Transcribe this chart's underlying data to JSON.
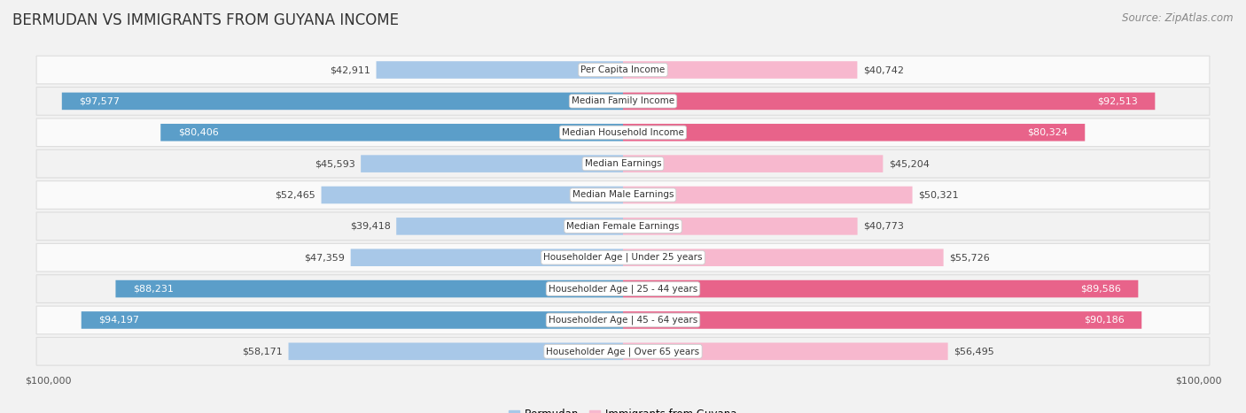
{
  "title": "BERMUDAN VS IMMIGRANTS FROM GUYANA INCOME",
  "source": "Source: ZipAtlas.com",
  "max_value": 100000,
  "categories": [
    "Per Capita Income",
    "Median Family Income",
    "Median Household Income",
    "Median Earnings",
    "Median Male Earnings",
    "Median Female Earnings",
    "Householder Age | Under 25 years",
    "Householder Age | 25 - 44 years",
    "Householder Age | 45 - 64 years",
    "Householder Age | Over 65 years"
  ],
  "bermudan_values": [
    42911,
    97577,
    80406,
    45593,
    52465,
    39418,
    47359,
    88231,
    94197,
    58171
  ],
  "guyana_values": [
    40742,
    92513,
    80324,
    45204,
    50321,
    40773,
    55726,
    89586,
    90186,
    56495
  ],
  "bermudan_color_light": "#a8c8e8",
  "bermudan_color_dark": "#5b9ec9",
  "guyana_color_light": "#f7b8ce",
  "guyana_color_dark": "#e8638a",
  "label_dark": "#444444",
  "label_light": "#ffffff",
  "row_bg_odd": "#f2f2f2",
  "row_bg_even": "#fafafa",
  "row_border": "#dddddd",
  "label_box_fill": "#ffffff",
  "label_box_edge": "#cccccc",
  "axis_bg": "#f2f2f2",
  "title_fontsize": 12,
  "source_fontsize": 8.5,
  "bar_label_fontsize": 8,
  "cat_label_fontsize": 7.5,
  "axis_label_fontsize": 8,
  "dark_threshold": 70000
}
